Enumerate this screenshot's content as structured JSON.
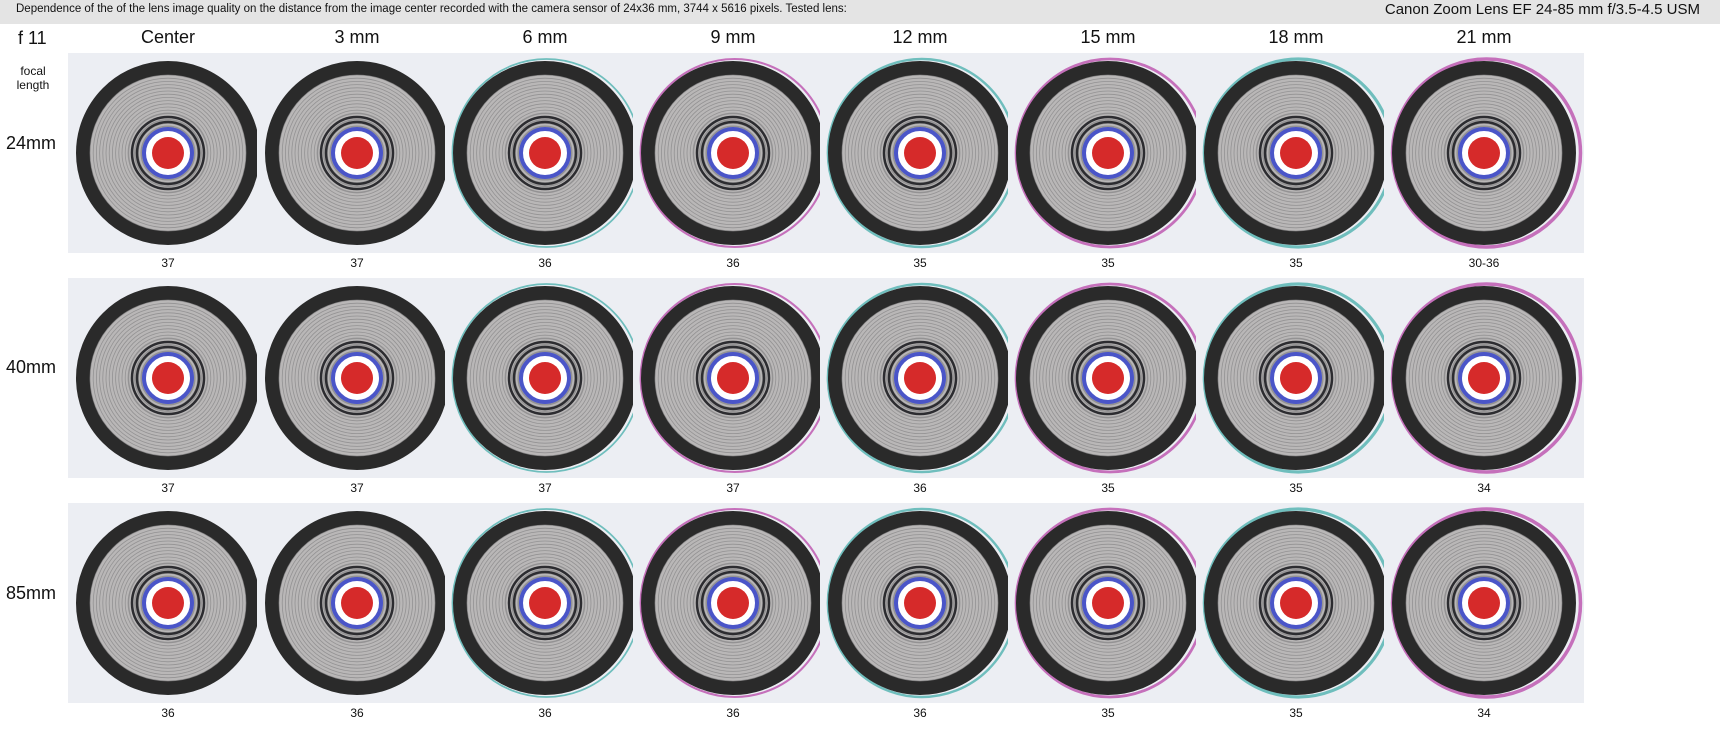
{
  "header": {
    "description": "Dependence of the of the lens image quality on the distance from the image center recorded with the camera sensor of 24x36 mm, 3744 x 5616 pixels.  Tested lens:",
    "lens": "Canon Zoom Lens EF 24-85 mm f/3.5-4.5 USM"
  },
  "aperture": "f 11",
  "focal_length_label": "focal length",
  "columns": [
    "Center",
    "3 mm",
    "6 mm",
    "9 mm",
    "12 mm",
    "15 mm",
    "18 mm",
    "21 mm"
  ],
  "rows": [
    {
      "focal": "24mm",
      "scores": [
        "37",
        "37",
        "36",
        "36",
        "35",
        "35",
        "35",
        "30-36"
      ]
    },
    {
      "focal": "40mm",
      "scores": [
        "37",
        "37",
        "37",
        "37",
        "36",
        "35",
        "35",
        "34"
      ]
    },
    {
      "focal": "85mm",
      "scores": [
        "36",
        "36",
        "36",
        "36",
        "36",
        "35",
        "35",
        "34"
      ]
    }
  ],
  "colors": {
    "ring": "#2a2a2a",
    "target_gray": "#b9b7b7",
    "center_red": "#d62a2a",
    "blue_ring": "#4a55c8",
    "tile_bg": "#eceef3",
    "fringe_magenta": "#b53aa3",
    "fringe_cyan": "#3aa9a5"
  }
}
